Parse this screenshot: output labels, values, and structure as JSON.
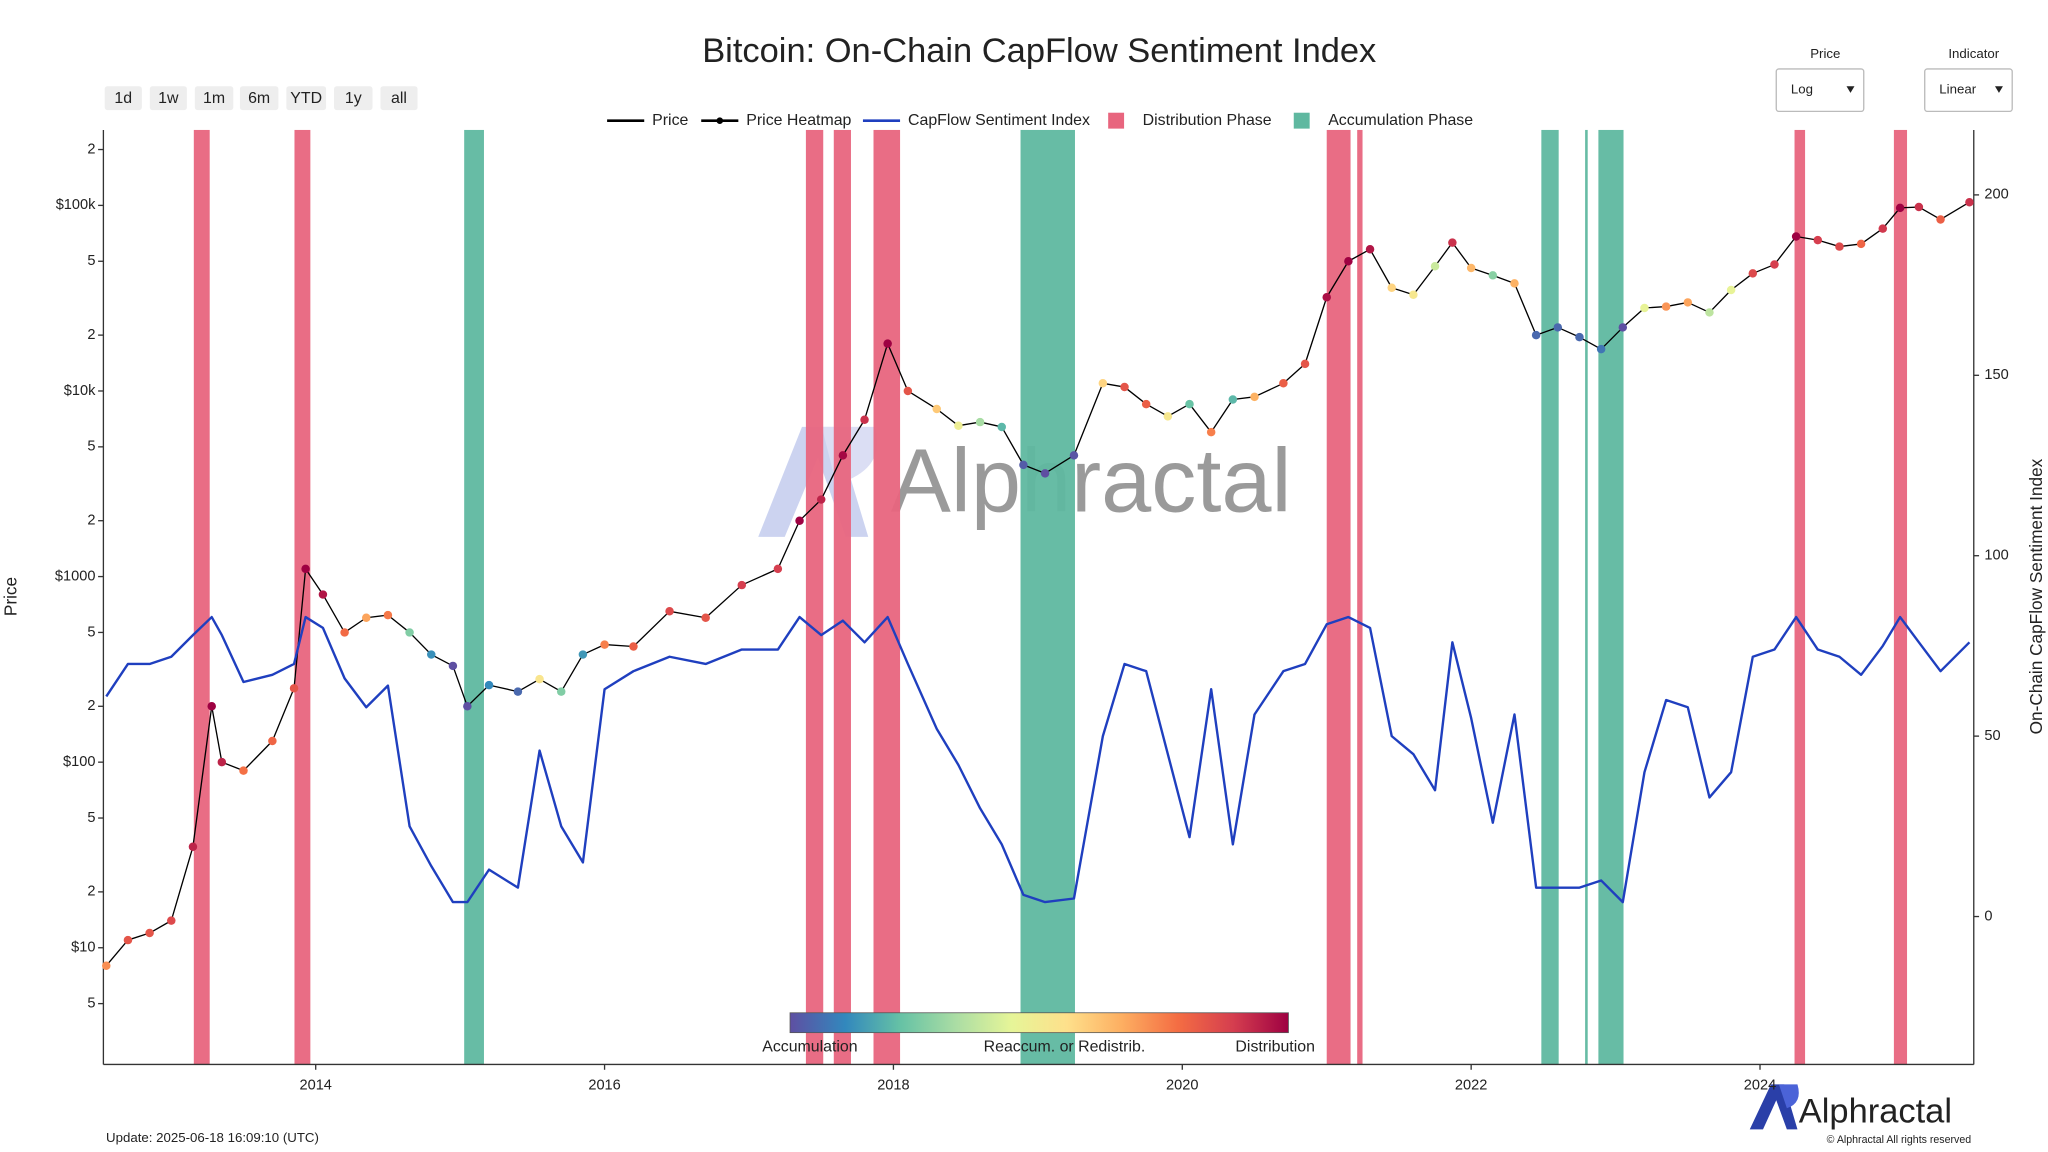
{
  "chart_data": {
    "type": "line",
    "title": "Bitcoin: On-Chain CapFlow Sentiment Index",
    "ylabel": "Price",
    "y2label": "On-Chain CapFlow Sentiment Index",
    "ylog": true,
    "grid": false,
    "legend": "top",
    "range_buttons": [
      "1d",
      "1w",
      "1m",
      "6m",
      "YTD",
      "1y",
      "all"
    ],
    "dropdowns": [
      {
        "label": "Price",
        "value": "Log"
      },
      {
        "label": "Indicator",
        "value": "Linear"
      }
    ],
    "xlim": [
      2012.53,
      2025.48
    ],
    "xticks": [
      2014,
      2016,
      2018,
      2020,
      2022,
      2024
    ],
    "ylim": [
      2.35,
      255000
    ],
    "yticks": [
      5,
      {
        "value": 10,
        "label": "$10"
      },
      {
        "value": 20,
        "label": "2"
      },
      {
        "value": 50,
        "label": "5"
      },
      {
        "value": 100,
        "label": "$100"
      },
      {
        "value": 200,
        "label": "2"
      },
      {
        "value": 500,
        "label": "5"
      },
      {
        "value": 1000,
        "label": "$1000"
      },
      {
        "value": 2000,
        "label": "2"
      },
      {
        "value": 5000,
        "label": "5"
      },
      {
        "value": 10000,
        "label": "$10k"
      },
      {
        "value": 20000,
        "label": "2"
      },
      {
        "value": 50000,
        "label": "5"
      },
      {
        "value": 100000,
        "label": "$100k"
      },
      {
        "value": 200000,
        "label": "2"
      }
    ],
    "y2lim": [
      -41,
      218
    ],
    "y2ticks": [
      0,
      50,
      100,
      150,
      200
    ],
    "x": [
      2012.55,
      2012.7,
      2012.85,
      2013.0,
      2013.15,
      2013.28,
      2013.35,
      2013.5,
      2013.7,
      2013.85,
      2013.93,
      2014.05,
      2014.2,
      2014.35,
      2014.5,
      2014.65,
      2014.8,
      2014.95,
      2015.05,
      2015.2,
      2015.4,
      2015.55,
      2015.7,
      2015.85,
      2016.0,
      2016.2,
      2016.45,
      2016.7,
      2016.95,
      2017.2,
      2017.35,
      2017.5,
      2017.65,
      2017.8,
      2017.96,
      2018.1,
      2018.3,
      2018.45,
      2018.6,
      2018.75,
      2018.9,
      2019.05,
      2019.25,
      2019.45,
      2019.6,
      2019.75,
      2019.9,
      2020.05,
      2020.2,
      2020.35,
      2020.5,
      2020.7,
      2020.85,
      2021.0,
      2021.15,
      2021.3,
      2021.45,
      2021.6,
      2021.75,
      2021.87,
      2022.0,
      2022.15,
      2022.3,
      2022.45,
      2022.6,
      2022.75,
      2022.9,
      2023.05,
      2023.2,
      2023.35,
      2023.5,
      2023.65,
      2023.8,
      2023.95,
      2024.1,
      2024.25,
      2024.4,
      2024.55,
      2024.7,
      2024.85,
      2024.97,
      2025.1,
      2025.25,
      2025.45
    ],
    "series": [
      {
        "name": "Price",
        "color": "#000000",
        "values": [
          8,
          11,
          12,
          14,
          35,
          200,
          100,
          90,
          130,
          250,
          1100,
          800,
          500,
          600,
          620,
          500,
          380,
          330,
          200,
          260,
          240,
          280,
          240,
          380,
          430,
          420,
          650,
          600,
          900,
          1100,
          2000,
          2600,
          4500,
          7000,
          18000,
          10000,
          8000,
          6500,
          6800,
          6400,
          4000,
          3600,
          4500,
          11000,
          10500,
          8500,
          7300,
          8500,
          6000,
          9000,
          9300,
          11000,
          14000,
          32000,
          50000,
          58000,
          36000,
          33000,
          47000,
          63000,
          46000,
          42000,
          38000,
          20000,
          22000,
          19500,
          16800,
          22000,
          28000,
          28500,
          30000,
          26500,
          35000,
          43000,
          48000,
          68000,
          65000,
          60000,
          62000,
          75000,
          97000,
          98000,
          84000,
          104000
        ]
      },
      {
        "name": "Price Heatmap",
        "color": "#000000"
      },
      {
        "name": "CapFlow Sentiment Index",
        "color": "#1f3fbf",
        "axis": "y2",
        "values": [
          61,
          70,
          70,
          72,
          78,
          83,
          78,
          65,
          67,
          70,
          83,
          80,
          66,
          58,
          64,
          25,
          14,
          4,
          4,
          13,
          8,
          46,
          25,
          15,
          63,
          68,
          72,
          70,
          74,
          74,
          83,
          78,
          82,
          76,
          83,
          70,
          52,
          42,
          30,
          20,
          6,
          4,
          5,
          50,
          70,
          68,
          45,
          22,
          63,
          20,
          56,
          68,
          70,
          81,
          83,
          80,
          50,
          45,
          35,
          76,
          55,
          26,
          56,
          8,
          8,
          8,
          10,
          4,
          40,
          60,
          58,
          33,
          40,
          72,
          74,
          83,
          74,
          72,
          67,
          75,
          83,
          76,
          68,
          76
        ]
      }
    ],
    "bands": [
      {
        "name": "Distribution Phase",
        "color": "#e8657e",
        "ranges": [
          [
            2013.156,
            2013.266
          ],
          [
            2013.853,
            2013.963
          ],
          [
            2017.394,
            2017.514
          ],
          [
            2017.587,
            2017.706
          ],
          [
            2017.862,
            2018.046
          ],
          [
            2021.0,
            2021.165
          ],
          [
            2021.211,
            2021.248
          ],
          [
            2024.239,
            2024.312
          ],
          [
            2024.927,
            2025.018
          ]
        ]
      },
      {
        "name": "Accumulation Phase",
        "color": "#5fb8a0",
        "ranges": [
          [
            2015.028,
            2015.165
          ],
          [
            2018.88,
            2019.257
          ],
          [
            2022.486,
            2022.606
          ],
          [
            2022.789,
            2022.807
          ],
          [
            2022.881,
            2023.055
          ]
        ]
      }
    ],
    "colorbar": {
      "colors": [
        "#5e4fa2",
        "#3288bd",
        "#66c2a5",
        "#abdda4",
        "#e6f598",
        "#fee08b",
        "#fdae61",
        "#f46d43",
        "#d53e4f",
        "#9e0142"
      ],
      "labels": [
        "Accumulation",
        "Reaccum. or Redistrib.",
        "Distribution"
      ]
    },
    "watermark": "Alphractal",
    "logo": "Alphractal",
    "update_note": "Update: 2025-06-18 16:09:10 (UTC)",
    "copyright": "© Alphractal All rights reserved"
  }
}
